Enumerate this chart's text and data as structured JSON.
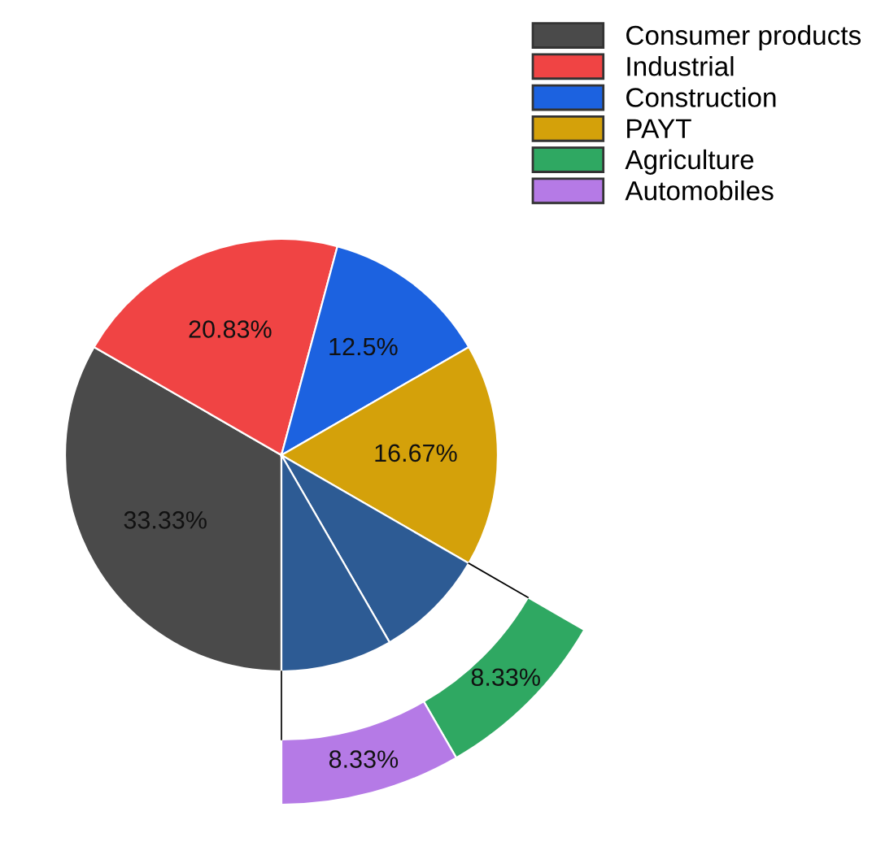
{
  "chart_data": {
    "type": "pie",
    "categories": [
      "Consumer products",
      "Industrial",
      "Construction",
      "PAYT",
      "Agriculture",
      "Automobiles"
    ],
    "series": [
      {
        "values": [
          33.33,
          20.83,
          12.5,
          16.67,
          8.33,
          8.33
        ],
        "colors": [
          "#4a4a4a",
          "#f04444",
          "#1c62e0",
          "#d4a10a",
          "#2d5b94",
          "#2d5b94"
        ],
        "value_labels": [
          "33.33%",
          "20.83%",
          "12.5%",
          "16.67%",
          null,
          null
        ]
      },
      {
        "values": [
          null,
          null,
          null,
          null,
          8.33,
          8.33
        ],
        "colors": [
          null,
          null,
          null,
          null,
          "#2fa862",
          "#b57ae6"
        ],
        "value_labels": [
          null,
          null,
          null,
          null,
          "8.33%",
          "8.33%"
        ]
      }
    ],
    "legend": "top right"
  }
}
